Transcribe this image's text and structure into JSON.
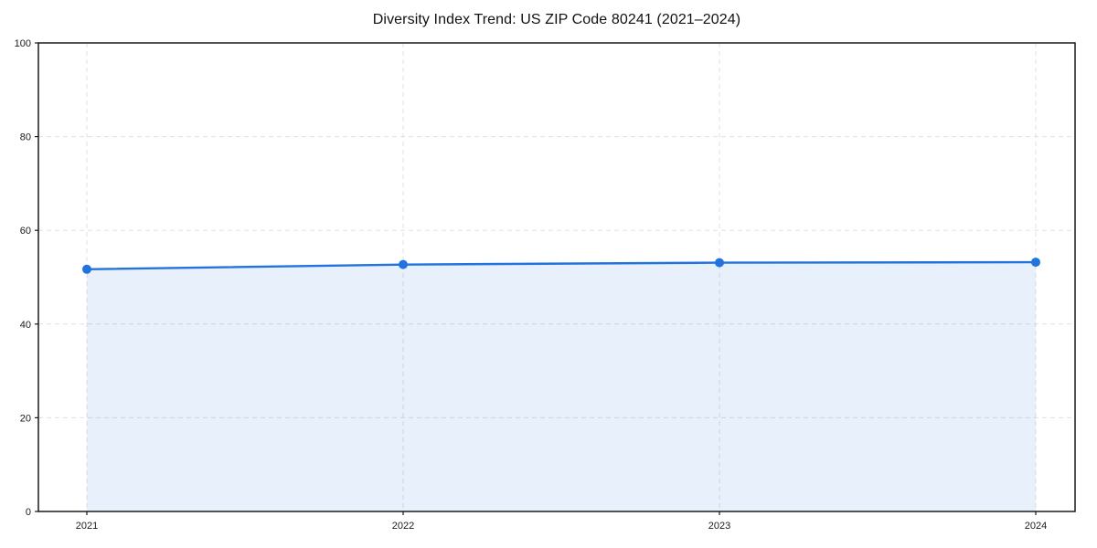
{
  "chart_data": {
    "type": "line",
    "title": "Diversity Index Trend: US ZIP Code 80241 (2021–2024)",
    "categories": [
      "2021",
      "2022",
      "2023",
      "2024"
    ],
    "series": [
      {
        "name": "Diversity Index",
        "values": [
          51.7,
          52.7,
          53.1,
          53.2
        ]
      }
    ],
    "xlabel": "",
    "ylabel": "",
    "ylim": [
      0,
      100
    ],
    "yticks": [
      0,
      20,
      40,
      60,
      80,
      100
    ],
    "grid": true,
    "grid_style": "dashed",
    "legend": false,
    "area_fill": true,
    "markers": "circle",
    "style": {
      "line_color": "#2273DD",
      "marker_color": "#2273DD",
      "fill_color": "#2273DD",
      "fill_opacity": 0.11,
      "grid_color": "#E0E0E0",
      "axis_color": "#1A1A1A",
      "tick_label_color": "#1A1A1A",
      "background": "#FFFFFF"
    }
  }
}
